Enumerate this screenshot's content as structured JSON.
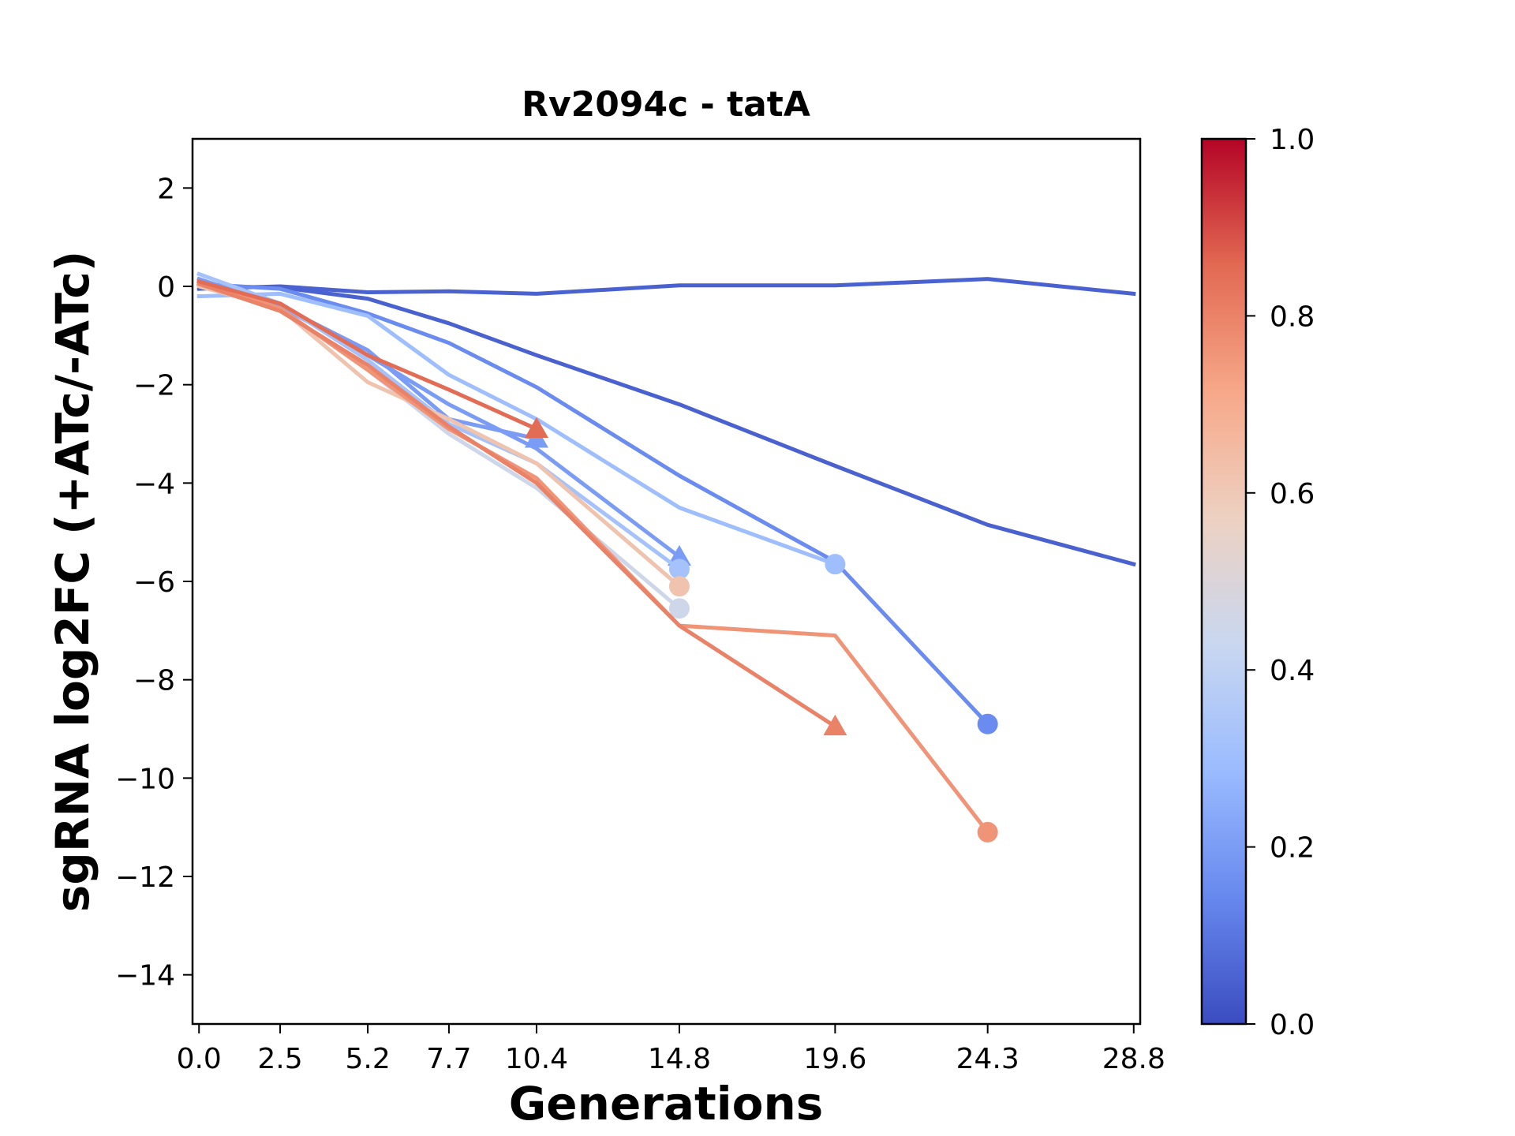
{
  "chart_data": {
    "type": "line",
    "title": "Rv2094c - tatA",
    "xlabel": "Generations",
    "ylabel": "sgRNA log2FC (+ATc/-ATc)",
    "xlim": [
      -0.2,
      29.0
    ],
    "ylim": [
      -15,
      3
    ],
    "x_ticks": [
      0.0,
      2.5,
      5.2,
      7.7,
      10.4,
      14.8,
      19.6,
      24.3,
      28.8
    ],
    "x_tick_labels": [
      "0.0",
      "2.5",
      "5.2",
      "7.7",
      "10.4",
      "14.8",
      "19.6",
      "24.3",
      "28.8"
    ],
    "y_ticks": [
      2,
      0,
      -2,
      -4,
      -6,
      -8,
      -10,
      -12,
      -14
    ],
    "y_tick_labels": [
      "2",
      "0",
      "−2",
      "−4",
      "−6",
      "−8",
      "−10",
      "−12",
      "−14"
    ],
    "grid": false,
    "colorbar": {
      "colormap": "coolwarm",
      "range": [
        0.0,
        1.0
      ],
      "ticks": [
        0.0,
        0.2,
        0.4,
        0.6,
        0.8,
        1.0
      ],
      "tick_labels": [
        "0.0",
        "0.2",
        "0.4",
        "0.6",
        "0.8",
        "1.0"
      ],
      "stops": [
        "#3b4cc0",
        "#6788ee",
        "#9abbff",
        "#c9d7f0",
        "#edd1c2",
        "#f7a889",
        "#e26952",
        "#b40426"
      ]
    },
    "series": [
      {
        "color_value": 0.05,
        "x": [
          0.0,
          2.5,
          5.2,
          7.7,
          10.4,
          14.8,
          19.6,
          24.3,
          28.8
        ],
        "y": [
          -0.05,
          0.0,
          -0.12,
          -0.1,
          -0.15,
          0.02,
          0.02,
          0.15,
          -0.15
        ],
        "end_marker": "none"
      },
      {
        "color_value": 0.05,
        "x": [
          0.0,
          2.5,
          5.2,
          7.7,
          10.4,
          14.8,
          19.6,
          24.3,
          28.8
        ],
        "y": [
          0.0,
          -0.02,
          -0.25,
          -0.75,
          -1.4,
          -2.4,
          -3.65,
          -4.85,
          -5.65
        ],
        "end_marker": "none"
      },
      {
        "color_value": 0.15,
        "x": [
          0.0,
          2.5,
          5.2,
          7.7,
          10.4,
          14.8,
          19.6,
          24.3
        ],
        "y": [
          0.05,
          -0.05,
          -0.55,
          -1.15,
          -2.05,
          -3.85,
          -5.6,
          -8.9
        ],
        "end_marker": "circle"
      },
      {
        "color_value": 0.3,
        "x": [
          0.0,
          2.5,
          5.2,
          7.7,
          10.4,
          14.8,
          19.6
        ],
        "y": [
          -0.2,
          -0.15,
          -0.6,
          -1.8,
          -2.7,
          -4.5,
          -5.65
        ],
        "end_marker": "circle"
      },
      {
        "color_value": 0.2,
        "x": [
          0.0,
          2.5,
          5.2,
          7.7,
          10.4,
          14.8
        ],
        "y": [
          0.15,
          -0.4,
          -1.4,
          -2.4,
          -3.3,
          -5.5
        ],
        "end_marker": "triangle"
      },
      {
        "color_value": 0.2,
        "x": [
          0.0,
          2.5,
          5.2,
          7.7,
          10.4
        ],
        "y": [
          0.05,
          -0.4,
          -1.3,
          -2.7,
          -3.1
        ],
        "end_marker": "triangle"
      },
      {
        "color_value": 0.32,
        "x": [
          0.0,
          2.5,
          5.2,
          7.7,
          10.4,
          14.8
        ],
        "y": [
          0.25,
          -0.35,
          -1.5,
          -2.8,
          -3.6,
          -5.75
        ],
        "end_marker": "circle"
      },
      {
        "color_value": 0.45,
        "x": [
          0.0,
          2.5,
          5.2,
          7.7,
          10.4,
          14.8
        ],
        "y": [
          0.05,
          -0.45,
          -1.7,
          -3.0,
          -4.1,
          -6.55
        ],
        "end_marker": "circle"
      },
      {
        "color_value": 0.62,
        "x": [
          0.0,
          2.5,
          5.2,
          7.7,
          10.4,
          14.8
        ],
        "y": [
          0.0,
          -0.45,
          -1.95,
          -2.7,
          -3.6,
          -6.1
        ],
        "end_marker": "circle"
      },
      {
        "color_value": 0.76,
        "x": [
          0.0,
          2.5,
          5.2,
          7.7,
          10.4,
          14.8,
          19.6,
          24.3
        ],
        "y": [
          0.1,
          -0.45,
          -1.7,
          -2.9,
          -3.9,
          -6.9,
          -7.1,
          -11.1
        ],
        "end_marker": "circle"
      },
      {
        "color_value": 0.8,
        "x": [
          0.0,
          2.5,
          5.2,
          7.7,
          10.4,
          14.8,
          19.6
        ],
        "y": [
          0.05,
          -0.5,
          -1.6,
          -2.85,
          -4.0,
          -6.9,
          -8.95
        ],
        "end_marker": "triangle"
      },
      {
        "color_value": 0.85,
        "x": [
          0.0,
          2.5,
          5.2,
          7.7,
          10.4
        ],
        "y": [
          0.1,
          -0.35,
          -1.4,
          -2.1,
          -2.9
        ],
        "end_marker": "triangle"
      }
    ]
  }
}
